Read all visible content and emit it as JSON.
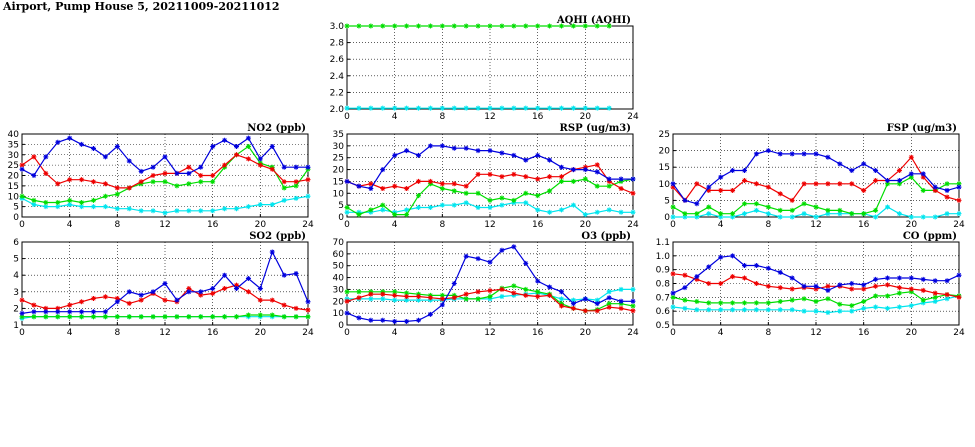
{
  "page_title": "Airport, Pump House 5, 20211009-20211012",
  "series_colors": [
    "#00e5ee",
    "#00dd00",
    "#ee0000",
    "#0000dd"
  ],
  "chart_data": [
    {
      "type": "line",
      "title": "AQHI (AQHI)",
      "xlim": [
        0,
        24
      ],
      "ylim": [
        2.0,
        3.0
      ],
      "xticks": [
        "0",
        "4",
        "8",
        "12",
        "16",
        "20",
        "24"
      ],
      "yticks": [
        "2.0",
        "2.2",
        "2.4",
        "2.6",
        "2.8",
        "3.0"
      ],
      "grid": true,
      "x": [
        0,
        1,
        2,
        3,
        4,
        5,
        6,
        7,
        8,
        9,
        10,
        11,
        12,
        13,
        14,
        15,
        16,
        17,
        18,
        19,
        20,
        21,
        22
      ],
      "series": [
        {
          "values": [
            2.01,
            2.01,
            2.01,
            2.01,
            2.01,
            2.01,
            2.01,
            2.01,
            2.01,
            2.01,
            2.01,
            2.01,
            2.01,
            2.01,
            2.01,
            2.01,
            2.01,
            2.01,
            2.01,
            2.01,
            2.01,
            2.01,
            2.01
          ]
        },
        {
          "values": [
            3.0,
            3.0,
            3.0,
            3.0,
            3.0,
            3.0,
            3.0,
            3.0,
            3.0,
            3.0,
            3.0,
            3.0,
            3.0,
            3.0,
            3.0,
            3.0,
            3.0,
            3.0,
            3.0,
            3.0,
            3.0,
            3.0,
            3.0
          ]
        }
      ]
    },
    {
      "type": "line",
      "title": "NO2 (ppb)",
      "xlim": [
        0,
        24
      ],
      "ylim": [
        0,
        40
      ],
      "xticks": [
        "0",
        "4",
        "8",
        "12",
        "16",
        "20",
        "24"
      ],
      "yticks": [
        "0",
        "5",
        "10",
        "15",
        "20",
        "25",
        "30",
        "35",
        "40"
      ],
      "grid": true,
      "x": [
        0,
        1,
        2,
        3,
        4,
        5,
        6,
        7,
        8,
        9,
        10,
        11,
        12,
        13,
        14,
        15,
        16,
        17,
        18,
        19,
        20,
        21,
        22,
        23,
        24
      ],
      "series": [
        {
          "values": [
            9,
            6,
            5,
            5,
            6,
            5,
            5,
            5,
            4,
            4,
            3,
            3,
            2,
            3,
            3,
            3,
            3,
            4,
            4,
            5,
            6,
            6,
            8,
            9,
            10
          ]
        },
        {
          "values": [
            10,
            8,
            7,
            7,
            8,
            7,
            8,
            10,
            11,
            14,
            16,
            17,
            17,
            15,
            16,
            17,
            17,
            24,
            30,
            34,
            26,
            24,
            14,
            15,
            23
          ]
        },
        {
          "values": [
            25,
            29,
            21,
            16,
            18,
            18,
            17,
            16,
            14,
            14,
            17,
            20,
            21,
            21,
            24,
            20,
            20,
            25,
            30,
            28,
            25,
            23,
            17,
            17,
            18
          ]
        },
        {
          "values": [
            23,
            20,
            29,
            36,
            38,
            35,
            33,
            29,
            34,
            27,
            22,
            24,
            29,
            21,
            21,
            24,
            34,
            37,
            34,
            38,
            28,
            34,
            24,
            24,
            24
          ]
        }
      ]
    },
    {
      "type": "line",
      "title": "RSP (ug/m3)",
      "xlim": [
        0,
        24
      ],
      "ylim": [
        0,
        35
      ],
      "xticks": [
        "0",
        "4",
        "8",
        "12",
        "16",
        "20",
        "24"
      ],
      "yticks": [
        "0",
        "5",
        "10",
        "15",
        "20",
        "25",
        "30",
        "35"
      ],
      "grid": true,
      "x": [
        0,
        1,
        2,
        3,
        4,
        5,
        6,
        7,
        8,
        9,
        10,
        11,
        12,
        13,
        14,
        15,
        16,
        17,
        18,
        19,
        20,
        21,
        22,
        23,
        24
      ],
      "series": [
        {
          "values": [
            2,
            2,
            2,
            3,
            2,
            3,
            4,
            4,
            5,
            5,
            6,
            4,
            4,
            5,
            6,
            6,
            3,
            2,
            3,
            5,
            1,
            2,
            3,
            2,
            2
          ]
        },
        {
          "values": [
            4,
            1,
            3,
            5,
            1,
            1,
            9,
            14,
            12,
            11,
            10,
            10,
            7,
            8,
            7,
            10,
            9,
            11,
            15,
            15,
            16,
            13,
            13,
            15,
            16
          ]
        },
        {
          "values": [
            15,
            13,
            14,
            12,
            13,
            12,
            15,
            15,
            14,
            14,
            13,
            18,
            18,
            17,
            18,
            17,
            16,
            17,
            17,
            20,
            21,
            22,
            15,
            12,
            10
          ]
        },
        {
          "values": [
            15,
            13,
            12,
            20,
            26,
            28,
            26,
            30,
            30,
            29,
            29,
            28,
            28,
            27,
            26,
            24,
            26,
            24,
            21,
            20,
            20,
            19,
            16,
            16,
            16
          ]
        }
      ]
    },
    {
      "type": "line",
      "title": "FSP (ug/m3)",
      "xlim": [
        0,
        24
      ],
      "ylim": [
        0,
        25
      ],
      "xticks": [
        "0",
        "4",
        "8",
        "12",
        "16",
        "20",
        "24"
      ],
      "yticks": [
        "0",
        "5",
        "10",
        "15",
        "20",
        "25"
      ],
      "grid": true,
      "x": [
        0,
        1,
        2,
        3,
        4,
        5,
        6,
        7,
        8,
        9,
        10,
        11,
        12,
        13,
        14,
        15,
        16,
        17,
        18,
        19,
        20,
        21,
        22,
        23,
        24
      ],
      "series": [
        {
          "values": [
            0,
            0,
            0,
            1,
            0,
            0,
            1,
            2,
            1,
            0,
            0,
            1,
            0,
            1,
            1,
            1,
            1,
            0,
            3,
            1,
            0,
            0,
            0,
            1,
            1
          ]
        },
        {
          "values": [
            3,
            1,
            1,
            3,
            1,
            1,
            4,
            4,
            3,
            2,
            2,
            4,
            3,
            2,
            2,
            1,
            1,
            2,
            10,
            10,
            12,
            8,
            8,
            10,
            10
          ]
        },
        {
          "values": [
            9,
            5,
            10,
            8,
            8,
            8,
            11,
            10,
            9,
            7,
            5,
            10,
            10,
            10,
            10,
            10,
            8,
            11,
            11,
            14,
            18,
            12,
            8,
            6,
            5
          ]
        },
        {
          "values": [
            10,
            5,
            4,
            9,
            12,
            14,
            14,
            19,
            20,
            19,
            19,
            19,
            19,
            18,
            16,
            14,
            16,
            14,
            11,
            11,
            13,
            13,
            9,
            8,
            9
          ]
        }
      ]
    },
    {
      "type": "line",
      "title": "SO2 (ppb)",
      "xlim": [
        0,
        24
      ],
      "ylim": [
        1,
        6
      ],
      "xticks": [
        "0",
        "4",
        "8",
        "12",
        "16",
        "20",
        "24"
      ],
      "yticks": [
        "1",
        "2",
        "3",
        "4",
        "5",
        "6"
      ],
      "grid": true,
      "x": [
        0,
        1,
        2,
        3,
        4,
        5,
        6,
        7,
        8,
        9,
        10,
        11,
        12,
        13,
        14,
        15,
        16,
        17,
        18,
        19,
        20,
        21,
        22,
        23,
        24
      ],
      "series": [
        {
          "values": [
            1.4,
            1.5,
            1.5,
            1.5,
            1.5,
            1.5,
            1.5,
            1.5,
            1.5,
            1.5,
            1.5,
            1.5,
            1.5,
            1.5,
            1.5,
            1.5,
            1.5,
            1.5,
            1.5,
            1.5,
            1.5,
            1.5,
            1.5,
            1.5,
            1.5
          ]
        },
        {
          "values": [
            1.5,
            1.5,
            1.5,
            1.5,
            1.5,
            1.5,
            1.5,
            1.5,
            1.5,
            1.5,
            1.5,
            1.5,
            1.5,
            1.5,
            1.5,
            1.5,
            1.5,
            1.5,
            1.5,
            1.6,
            1.6,
            1.6,
            1.5,
            1.5,
            1.5
          ]
        },
        {
          "values": [
            2.5,
            2.2,
            2.0,
            2.0,
            2.2,
            2.4,
            2.6,
            2.7,
            2.6,
            2.3,
            2.5,
            2.9,
            2.5,
            2.4,
            3.2,
            2.8,
            2.9,
            3.2,
            3.4,
            3.0,
            2.5,
            2.5,
            2.2,
            2.0,
            1.9
          ]
        },
        {
          "values": [
            1.7,
            1.8,
            1.8,
            1.8,
            1.8,
            1.8,
            1.8,
            1.8,
            2.4,
            3.0,
            2.8,
            3.0,
            3.5,
            2.5,
            3.0,
            3.0,
            3.2,
            4.0,
            3.2,
            3.8,
            3.2,
            5.4,
            4.0,
            4.1,
            2.4
          ]
        }
      ]
    },
    {
      "type": "line",
      "title": "O3 (ppb)",
      "xlim": [
        0,
        24
      ],
      "ylim": [
        0,
        70
      ],
      "xticks": [
        "0",
        "4",
        "8",
        "12",
        "16",
        "20",
        "24"
      ],
      "yticks": [
        "0",
        "10",
        "20",
        "30",
        "40",
        "50",
        "60",
        "70"
      ],
      "grid": true,
      "x": [
        0,
        1,
        2,
        3,
        4,
        5,
        6,
        7,
        8,
        9,
        10,
        11,
        12,
        13,
        14,
        15,
        16,
        17,
        18,
        19,
        20,
        21,
        22,
        23,
        24
      ],
      "series": [
        {
          "values": [
            22,
            22,
            22,
            22,
            21,
            21,
            21,
            21,
            21,
            22,
            22,
            22,
            22,
            24,
            25,
            26,
            27,
            25,
            22,
            21,
            22,
            21,
            28,
            30,
            30
          ]
        },
        {
          "values": [
            28,
            28,
            28,
            28,
            28,
            27,
            26,
            25,
            25,
            25,
            22,
            22,
            24,
            31,
            33,
            30,
            28,
            26,
            18,
            14,
            12,
            13,
            18,
            18,
            16
          ]
        },
        {
          "values": [
            20,
            23,
            26,
            26,
            25,
            24,
            24,
            23,
            22,
            23,
            26,
            28,
            29,
            30,
            27,
            25,
            24,
            25,
            16,
            14,
            12,
            12,
            15,
            14,
            12
          ]
        },
        {
          "values": [
            10,
            6,
            4,
            4,
            3,
            3,
            4,
            9,
            17,
            35,
            58,
            56,
            53,
            63,
            66,
            52,
            37,
            32,
            28,
            18,
            22,
            18,
            23,
            20,
            20
          ]
        }
      ]
    },
    {
      "type": "line",
      "title": "CO (ppm)",
      "xlim": [
        0,
        24
      ],
      "ylim": [
        0.5,
        1.1
      ],
      "xticks": [
        "0",
        "4",
        "8",
        "12",
        "16",
        "20",
        "24"
      ],
      "yticks": [
        "0.5",
        "0.6",
        "0.7",
        "0.8",
        "0.9",
        "1.0",
        "1.1"
      ],
      "grid": true,
      "x": [
        0,
        1,
        2,
        3,
        4,
        5,
        6,
        7,
        8,
        9,
        10,
        11,
        12,
        13,
        14,
        15,
        16,
        17,
        18,
        19,
        20,
        21,
        22,
        23,
        24
      ],
      "series": [
        {
          "values": [
            0.63,
            0.62,
            0.61,
            0.61,
            0.61,
            0.61,
            0.61,
            0.61,
            0.61,
            0.61,
            0.61,
            0.6,
            0.6,
            0.59,
            0.6,
            0.6,
            0.62,
            0.63,
            0.62,
            0.63,
            0.64,
            0.66,
            0.67,
            0.69,
            0.71
          ]
        },
        {
          "values": [
            0.7,
            0.68,
            0.67,
            0.66,
            0.66,
            0.66,
            0.66,
            0.66,
            0.66,
            0.67,
            0.68,
            0.69,
            0.67,
            0.69,
            0.65,
            0.64,
            0.67,
            0.71,
            0.71,
            0.73,
            0.74,
            0.68,
            0.7,
            0.72,
            0.71
          ]
        },
        {
          "values": [
            0.87,
            0.86,
            0.83,
            0.8,
            0.8,
            0.85,
            0.84,
            0.8,
            0.78,
            0.77,
            0.76,
            0.77,
            0.76,
            0.78,
            0.78,
            0.76,
            0.76,
            0.78,
            0.79,
            0.77,
            0.76,
            0.75,
            0.73,
            0.72,
            0.7
          ]
        },
        {
          "values": [
            0.73,
            0.77,
            0.85,
            0.92,
            0.99,
            1.0,
            0.93,
            0.93,
            0.91,
            0.88,
            0.84,
            0.78,
            0.78,
            0.75,
            0.79,
            0.8,
            0.79,
            0.83,
            0.84,
            0.84,
            0.84,
            0.83,
            0.82,
            0.82,
            0.86
          ]
        }
      ]
    }
  ]
}
